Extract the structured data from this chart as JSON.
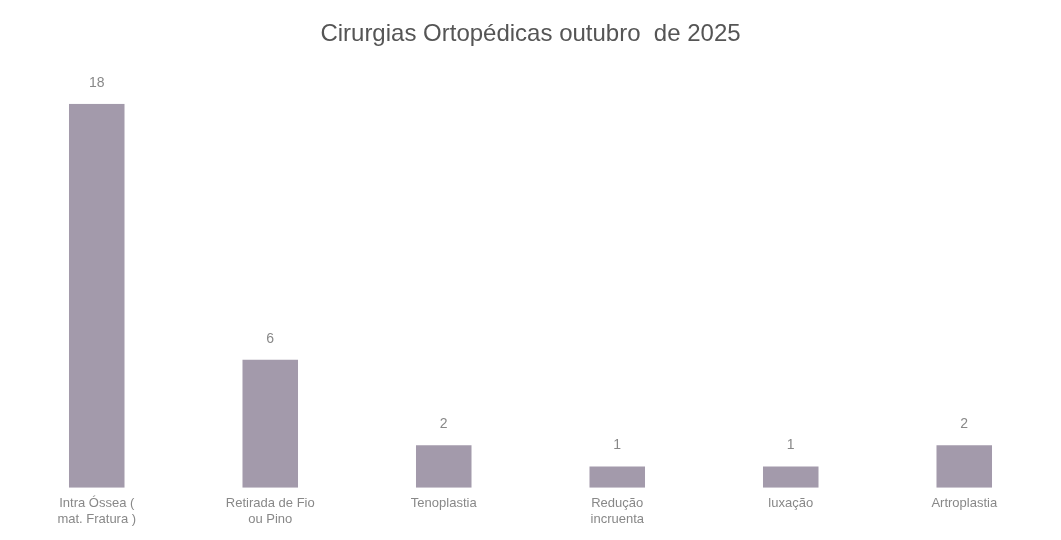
{
  "chart_data": {
    "type": "bar",
    "title": "Cirurgias Ortopédicas outubro  de 2025",
    "categories": [
      "Intra Óssea ( mat. Fratura )",
      "Retirada de Fio ou Pino",
      "Tenoplastia",
      "Redução incruenta",
      "luxação",
      "Artroplastia"
    ],
    "values": [
      18,
      6,
      2,
      1,
      1,
      2
    ],
    "color": "#a39aab",
    "data_labels": true,
    "grid": false,
    "legend": false
  }
}
